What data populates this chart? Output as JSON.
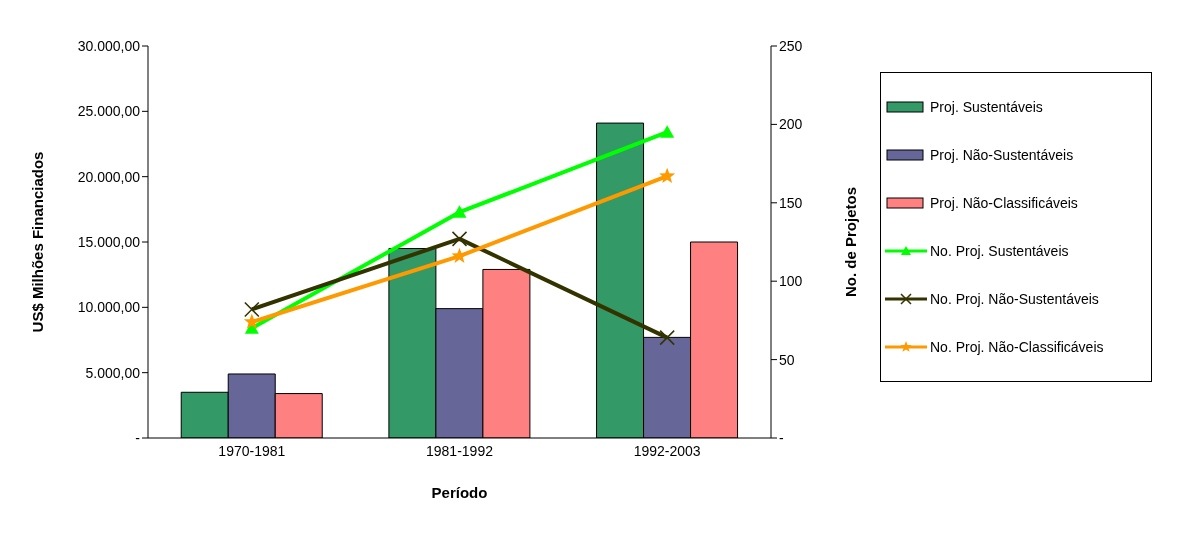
{
  "chart_data": {
    "type": "bar",
    "xlabel": "Período",
    "ylabel": "US$ Milhões Financiados",
    "y2label": "No. de Projetos",
    "categories": [
      "1970-1981",
      "1981-1992",
      "1992-2003"
    ],
    "series": [
      {
        "name": "Proj. Sustentáveis",
        "color": "#339966",
        "values": [
          3500,
          14500,
          24100
        ]
      },
      {
        "name": "Proj. Não-Sustentáveis",
        "color": "#666699",
        "values": [
          4900,
          9900,
          7700
        ]
      },
      {
        "name": "Proj. Não-Classificáveis",
        "color": "#ff8080",
        "values": [
          3400,
          12900,
          15000
        ]
      },
      {
        "name": "No. Proj. Sustentáveis",
        "type": "line",
        "axis": "y2",
        "color": "#00ff00",
        "marker": "triangle",
        "values": [
          70,
          144,
          195
        ]
      },
      {
        "name": "No. Proj. Não-Sustentáveis",
        "type": "line",
        "axis": "y2",
        "color": "#333300",
        "marker": "cross",
        "values": [
          82,
          127,
          64
        ]
      },
      {
        "name": "No. Proj. Não-Classificáveis",
        "type": "line",
        "axis": "y2",
        "color": "#ff9900",
        "marker": "star",
        "values": [
          74,
          116,
          167
        ]
      }
    ],
    "ylim": [
      0,
      30000
    ],
    "yticks": [
      {
        "value": 0,
        "label": "-"
      },
      {
        "value": 5000,
        "label": "5.000,00"
      },
      {
        "value": 10000,
        "label": "10.000,00"
      },
      {
        "value": 15000,
        "label": "15.000,00"
      },
      {
        "value": 20000,
        "label": "20.000,00"
      },
      {
        "value": 25000,
        "label": "25.000,00"
      },
      {
        "value": 30000,
        "label": "30.000,00"
      }
    ],
    "y2lim": [
      0,
      250
    ],
    "y2ticks": [
      {
        "value": 0,
        "label": "-"
      },
      50,
      100,
      150,
      200,
      250
    ],
    "grid": false,
    "legend": "right"
  }
}
